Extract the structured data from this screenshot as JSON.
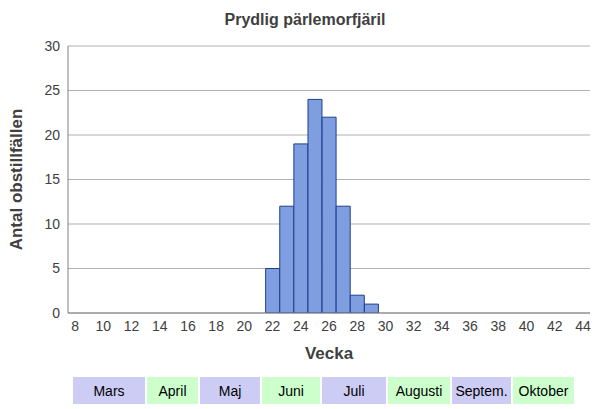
{
  "chart_data": {
    "type": "bar",
    "title": "Prydlig pärlemorfjäril",
    "x_label": "Vecka",
    "y_label": "Antal obstillfällen",
    "categories": [
      "8",
      null,
      "10",
      null,
      "12",
      null,
      "14",
      null,
      "16",
      null,
      "18",
      null,
      "20",
      null,
      "22",
      null,
      "24",
      null,
      "26",
      null,
      "28",
      null,
      "30",
      null,
      "32",
      null,
      "34",
      null,
      "36",
      null,
      "38",
      null,
      "40",
      null,
      "42",
      null,
      "44"
    ],
    "values": [
      0,
      0,
      0,
      0,
      0,
      0,
      0,
      0,
      0,
      0,
      0,
      0,
      0,
      0,
      5,
      12,
      19,
      24,
      22,
      12,
      2,
      1,
      0,
      0,
      0,
      0,
      0,
      0,
      0,
      0,
      0,
      0,
      0,
      0,
      0,
      0,
      0
    ],
    "color": "#7f9ee0",
    "ylim": [
      0,
      30
    ],
    "yticks": [
      0,
      5,
      10,
      15,
      20,
      25,
      30
    ],
    "grid": true,
    "months": [
      {
        "label": "Mars",
        "color": "#ccccf4"
      },
      {
        "label": "April",
        "color": "#ccffcc"
      },
      {
        "label": "Maj",
        "color": "#ccccf4"
      },
      {
        "label": "Juni",
        "color": "#ccffcc"
      },
      {
        "label": "Juli",
        "color": "#ccccf4"
      },
      {
        "label": "Augusti",
        "color": "#ccffcc"
      },
      {
        "label": "Septem.",
        "color": "#ccccf4"
      },
      {
        "label": "Oktober",
        "color": "#ccffcc"
      }
    ]
  }
}
